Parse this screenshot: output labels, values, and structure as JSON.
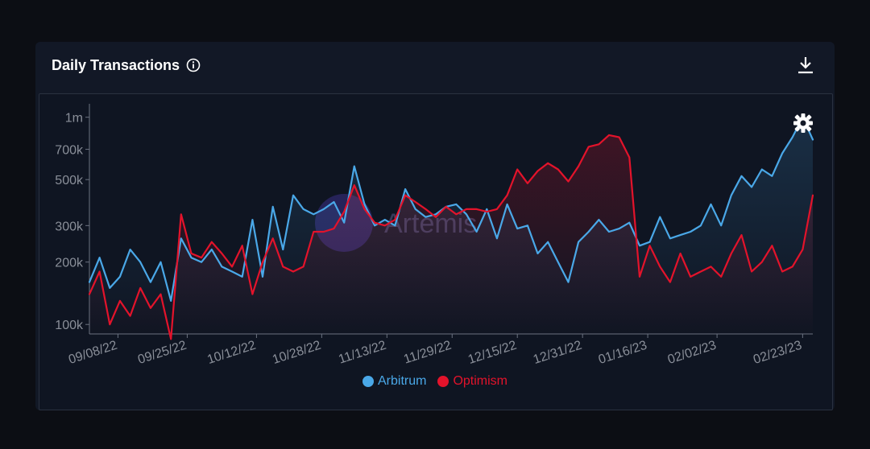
{
  "header": {
    "title": "Daily Transactions",
    "info_icon": "info-icon",
    "download_icon": "download-icon"
  },
  "settings_icon": "gear-icon",
  "watermark": {
    "text": "Artemis"
  },
  "colors": {
    "arbitrum": "#4aa8e8",
    "optimism": "#e3132b",
    "axis_text": "#8a8f99",
    "background": "#0f1522"
  },
  "chart_data": {
    "type": "line",
    "title": "Daily Transactions",
    "y_scale": "log",
    "ylim": [
      90000,
      1100000
    ],
    "y_ticks": [
      {
        "value": 100000,
        "label": "100k"
      },
      {
        "value": 200000,
        "label": "200k"
      },
      {
        "value": 300000,
        "label": "300k"
      },
      {
        "value": 500000,
        "label": "500k"
      },
      {
        "value": 700000,
        "label": "700k"
      },
      {
        "value": 1000000,
        "label": "1m"
      }
    ],
    "x_tick_labels": [
      "09/08/22",
      "09/25/22",
      "10/12/22",
      "10/28/22",
      "11/13/22",
      "11/29/22",
      "12/15/22",
      "12/31/22",
      "01/16/23",
      "02/02/23",
      "02/23/23"
    ],
    "x_tick_dates": [
      "2022-09-08",
      "2022-09-25",
      "2022-10-12",
      "2022-10-28",
      "2022-11-13",
      "2022-11-29",
      "2022-12-15",
      "2022-12-31",
      "2023-01-16",
      "2023-02-02",
      "2023-02-23"
    ],
    "x_start": "2022-09-01",
    "legend_position": "bottom-center",
    "grid": false,
    "series": [
      {
        "name": "Arbitrum",
        "color": "#4aa8e8",
        "values": [
          160000,
          210000,
          150000,
          170000,
          230000,
          200000,
          160000,
          200000,
          130000,
          260000,
          210000,
          200000,
          230000,
          190000,
          180000,
          170000,
          320000,
          170000,
          370000,
          230000,
          420000,
          360000,
          340000,
          360000,
          390000,
          310000,
          580000,
          380000,
          300000,
          320000,
          300000,
          450000,
          360000,
          330000,
          340000,
          370000,
          380000,
          340000,
          280000,
          360000,
          260000,
          380000,
          290000,
          300000,
          220000,
          250000,
          200000,
          160000,
          250000,
          280000,
          320000,
          280000,
          290000,
          310000,
          240000,
          250000,
          330000,
          260000,
          270000,
          280000,
          300000,
          380000,
          300000,
          420000,
          520000,
          460000,
          560000,
          520000,
          670000,
          800000,
          1000000,
          780000
        ]
      },
      {
        "name": "Optimism",
        "color": "#e3132b",
        "values": [
          140000,
          180000,
          100000,
          130000,
          110000,
          150000,
          120000,
          140000,
          85000,
          340000,
          220000,
          210000,
          250000,
          220000,
          190000,
          240000,
          140000,
          200000,
          260000,
          190000,
          180000,
          190000,
          280000,
          280000,
          290000,
          350000,
          470000,
          360000,
          310000,
          300000,
          320000,
          420000,
          390000,
          360000,
          330000,
          370000,
          340000,
          360000,
          360000,
          350000,
          360000,
          420000,
          560000,
          480000,
          550000,
          600000,
          560000,
          490000,
          580000,
          720000,
          740000,
          820000,
          800000,
          640000,
          170000,
          240000,
          190000,
          160000,
          220000,
          170000,
          180000,
          190000,
          170000,
          220000,
          270000,
          180000,
          200000,
          240000,
          180000,
          190000,
          230000,
          420000
        ]
      }
    ]
  },
  "legend": {
    "items": [
      {
        "label": "Arbitrum",
        "color": "#4aa8e8"
      },
      {
        "label": "Optimism",
        "color": "#e3132b"
      }
    ]
  }
}
